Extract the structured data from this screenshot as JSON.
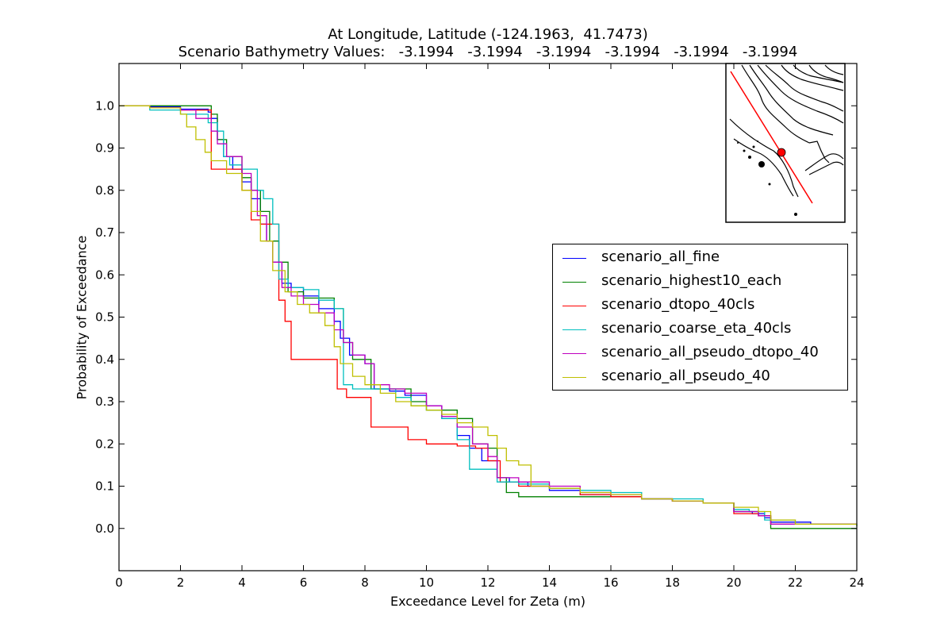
{
  "chart_data": {
    "type": "line",
    "title": "At Longitude, Latitude (-124.1963,  41.7473)",
    "subtitle": "Scenario Bathymetry Values:   -3.1994   -3.1994   -3.1994   -3.1994   -3.1994   -3.1994",
    "xlabel": "Exceedance Level for Zeta (m)",
    "ylabel": "Probability of Exceedance",
    "xlim": [
      0,
      24
    ],
    "ylim": [
      -0.1,
      1.1
    ],
    "xticks": [
      "0",
      "2",
      "4",
      "6",
      "8",
      "10",
      "12",
      "14",
      "16",
      "18",
      "20",
      "22",
      "24"
    ],
    "yticks": [
      "0.0",
      "0.1",
      "0.2",
      "0.3",
      "0.4",
      "0.5",
      "0.6",
      "0.7",
      "0.8",
      "0.9",
      "1.0"
    ],
    "grid": false,
    "legend_position": "center-right",
    "inset_map": true,
    "series": [
      {
        "name": "scenario_all_fine",
        "color": "#0000ff",
        "x": [
          0,
          1.0,
          2.0,
          2.9,
          3.0,
          3.2,
          3.4,
          3.7,
          4.0,
          4.3,
          4.6,
          4.8,
          5.0,
          5.3,
          5.6,
          6.0,
          6.5,
          7.0,
          7.2,
          7.5,
          8.0,
          8.3,
          8.8,
          9.3,
          10.0,
          10.5,
          11.0,
          11.4,
          11.8,
          12.3,
          12.7,
          13.3,
          14.0,
          15.0,
          16.0,
          17.0,
          18.0,
          19.0,
          20.0,
          20.6,
          21.0,
          21.2,
          22.0,
          22.5,
          24
        ],
        "y": [
          1.0,
          0.998,
          0.992,
          0.985,
          0.97,
          0.92,
          0.88,
          0.85,
          0.82,
          0.78,
          0.72,
          0.68,
          0.63,
          0.58,
          0.57,
          0.55,
          0.52,
          0.49,
          0.45,
          0.41,
          0.39,
          0.33,
          0.325,
          0.315,
          0.29,
          0.26,
          0.22,
          0.19,
          0.16,
          0.12,
          0.11,
          0.1,
          0.09,
          0.08,
          0.075,
          0.07,
          0.065,
          0.06,
          0.04,
          0.035,
          0.025,
          0.015,
          0.015,
          0.01,
          0.01
        ]
      },
      {
        "name": "scenario_highest10_each",
        "color": "#008000",
        "x": [
          0,
          1.0,
          2.0,
          2.9,
          3.0,
          3.2,
          3.5,
          4.0,
          4.3,
          4.6,
          4.9,
          5.2,
          5.5,
          6.0,
          6.6,
          7.0,
          7.3,
          7.6,
          8.2,
          8.8,
          9.5,
          10.0,
          11.0,
          11.5,
          12.0,
          12.3,
          12.6,
          13.0,
          14.0,
          15.0,
          16.0,
          17.0,
          18.0,
          19.0,
          20.0,
          20.8,
          21.2,
          22.0,
          24
        ],
        "y": [
          1.0,
          1.0,
          1.0,
          1.0,
          0.98,
          0.92,
          0.88,
          0.83,
          0.8,
          0.75,
          0.68,
          0.63,
          0.56,
          0.545,
          0.545,
          0.52,
          0.44,
          0.4,
          0.33,
          0.33,
          0.3,
          0.28,
          0.26,
          0.2,
          0.19,
          0.12,
          0.085,
          0.075,
          0.075,
          0.075,
          0.075,
          0.07,
          0.065,
          0.06,
          0.04,
          0.03,
          0.0,
          0.0,
          0.0
        ]
      },
      {
        "name": "scenario_dtopo_40cls",
        "color": "#ff0000",
        "x": [
          0,
          1.0,
          2.0,
          3.0,
          3.2,
          3.6,
          4.0,
          4.3,
          4.6,
          5.0,
          5.2,
          5.4,
          5.6,
          6.0,
          7.0,
          7.1,
          7.4,
          8.0,
          8.2,
          9.0,
          9.4,
          10.0,
          11.0,
          11.6,
          12.0,
          12.4,
          13.0,
          14.0,
          15.0,
          16.0,
          17.0,
          18.0,
          19.0,
          20.0,
          20.8,
          21.2,
          22.0,
          24
        ],
        "y": [
          1.0,
          0.995,
          0.99,
          0.85,
          0.85,
          0.85,
          0.8,
          0.73,
          0.72,
          0.72,
          0.54,
          0.49,
          0.4,
          0.4,
          0.4,
          0.33,
          0.31,
          0.31,
          0.24,
          0.24,
          0.21,
          0.2,
          0.195,
          0.19,
          0.16,
          0.11,
          0.1,
          0.095,
          0.08,
          0.075,
          0.07,
          0.065,
          0.06,
          0.035,
          0.03,
          0.01,
          0.01,
          0.01
        ]
      },
      {
        "name": "scenario_coarse_eta_40cls",
        "color": "#00bfbf",
        "x": [
          0,
          1.0,
          2.0,
          2.9,
          3.2,
          3.4,
          3.6,
          4.0,
          4.3,
          4.5,
          4.7,
          5.0,
          5.2,
          5.5,
          6.0,
          6.5,
          7.0,
          7.3,
          7.6,
          8.0,
          8.5,
          9.0,
          9.5,
          10.0,
          10.5,
          11.0,
          11.4,
          12.0,
          12.3,
          13.0,
          14.0,
          15.0,
          16.0,
          17.0,
          18.0,
          19.0,
          20.0,
          20.5,
          21.0,
          22.0,
          24
        ],
        "y": [
          1.0,
          0.99,
          0.98,
          0.96,
          0.94,
          0.88,
          0.86,
          0.85,
          0.85,
          0.8,
          0.78,
          0.72,
          0.59,
          0.57,
          0.565,
          0.54,
          0.52,
          0.34,
          0.33,
          0.33,
          0.33,
          0.31,
          0.29,
          0.28,
          0.26,
          0.21,
          0.14,
          0.14,
          0.11,
          0.105,
          0.095,
          0.09,
          0.085,
          0.07,
          0.07,
          0.06,
          0.045,
          0.04,
          0.02,
          0.01,
          0.005
        ]
      },
      {
        "name": "scenario_all_pseudo_dtopo_40",
        "color": "#bf00bf",
        "x": [
          0,
          1.0,
          2.0,
          2.5,
          3.0,
          3.2,
          3.5,
          4.0,
          4.3,
          4.5,
          4.8,
          5.0,
          5.3,
          5.6,
          6.0,
          6.5,
          7.0,
          7.3,
          7.6,
          8.0,
          8.3,
          8.8,
          9.3,
          10.0,
          10.5,
          11.0,
          11.5,
          12.0,
          12.3,
          13.0,
          14.0,
          15.0,
          16.0,
          17.0,
          18.0,
          19.0,
          20.0,
          20.8,
          21.2,
          22.0,
          24
        ],
        "y": [
          1.0,
          0.995,
          0.99,
          0.97,
          0.94,
          0.91,
          0.88,
          0.84,
          0.8,
          0.74,
          0.68,
          0.63,
          0.57,
          0.55,
          0.53,
          0.51,
          0.47,
          0.44,
          0.41,
          0.39,
          0.34,
          0.33,
          0.32,
          0.29,
          0.265,
          0.24,
          0.2,
          0.17,
          0.12,
          0.11,
          0.1,
          0.085,
          0.08,
          0.07,
          0.065,
          0.06,
          0.04,
          0.03,
          0.01,
          0.01,
          0.01
        ]
      },
      {
        "name": "scenario_all_pseudo_40",
        "color": "#bfbf00",
        "x": [
          0,
          1.0,
          2.0,
          2.2,
          2.5,
          2.8,
          3.0,
          3.5,
          4.0,
          4.3,
          4.6,
          5.0,
          5.4,
          5.8,
          6.2,
          6.7,
          7.0,
          7.2,
          7.6,
          8.0,
          8.5,
          9.0,
          9.5,
          10.0,
          10.5,
          11.0,
          11.5,
          12.0,
          12.3,
          12.6,
          13.0,
          13.4,
          14.0,
          15.0,
          16.0,
          17.0,
          18.0,
          19.0,
          20.0,
          20.8,
          21.2,
          22.0,
          24
        ],
        "y": [
          1.0,
          0.995,
          0.98,
          0.95,
          0.92,
          0.89,
          0.87,
          0.84,
          0.8,
          0.75,
          0.68,
          0.61,
          0.56,
          0.53,
          0.51,
          0.48,
          0.43,
          0.39,
          0.36,
          0.34,
          0.32,
          0.3,
          0.29,
          0.28,
          0.27,
          0.25,
          0.24,
          0.22,
          0.19,
          0.16,
          0.15,
          0.1,
          0.095,
          0.085,
          0.08,
          0.07,
          0.065,
          0.06,
          0.05,
          0.04,
          0.02,
          0.01,
          0.005
        ]
      }
    ]
  }
}
